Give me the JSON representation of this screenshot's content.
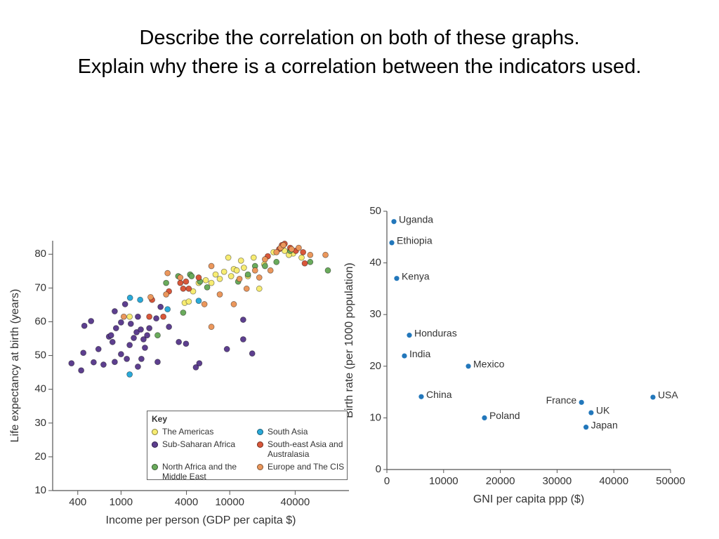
{
  "title": [
    "Describe the correlation on both of these graphs.",
    "Explain why there is a correlation between the indicators used."
  ],
  "chart_data": [
    {
      "type": "scatter",
      "xscale": "log",
      "x_label": "Income per person (GDP per capita $)",
      "y_label": "Life expectancy at birth (years)",
      "xlim": [
        235,
        125000
      ],
      "ylim": [
        10,
        84
      ],
      "xticks": [
        400,
        1000,
        4000,
        10000,
        40000
      ],
      "yticks": [
        10,
        20,
        30,
        40,
        50,
        60,
        70,
        80
      ],
      "legend_title": "Key",
      "series": [
        {
          "name": "The Americas",
          "color": "#f7ec72",
          "x": [
            1200,
            3850,
            4200,
            4600,
            5180,
            6020,
            6780,
            7410,
            8100,
            8870,
            9700,
            10300,
            10900,
            11600,
            12700,
            13500,
            14700,
            16600,
            18700,
            20800,
            25300,
            32000,
            38300,
            45800,
            35000
          ],
          "y": [
            61.5,
            65.6,
            66,
            69,
            71.5,
            72.3,
            71.5,
            74,
            72.7,
            74.8,
            79,
            73.5,
            75.6,
            75.2,
            78.1,
            76,
            73.5,
            79,
            69.8,
            77,
            80.6,
            81,
            80.2,
            79,
            79.8
          ]
        },
        {
          "name": "Sub-Saharan Africa",
          "color": "#5d3f8f",
          "x": [
            350,
            430,
            450,
            460,
            530,
            560,
            620,
            690,
            775,
            810,
            835,
            875,
            875,
            900,
            1000,
            1000,
            1130,
            1200,
            1230,
            1310,
            1390,
            1430,
            1520,
            1540,
            1610,
            1660,
            1740,
            1820,
            2110,
            2310,
            2170,
            2760,
            3400,
            3960,
            4880,
            5250,
            9420,
            13300,
            13300,
            16100,
            1090,
            1430
          ],
          "y": [
            47.7,
            45.6,
            50.8,
            58.8,
            60.2,
            48,
            51.9,
            47.3,
            55.6,
            56,
            54,
            63.1,
            48.1,
            58.1,
            59.8,
            50.4,
            49,
            53.1,
            59.4,
            55.2,
            56.9,
            46.7,
            57.7,
            49,
            54.8,
            52.3,
            56,
            58.1,
            61,
            64.4,
            48.1,
            58.5,
            54,
            53.5,
            46.5,
            47.7,
            51.9,
            60.6,
            54.8,
            50.6,
            65.2,
            61.5
          ]
        },
        {
          "name": "North Africa and the Middle East",
          "color": "#6aab5c",
          "x": [
            2170,
            2600,
            3360,
            3730,
            4320,
            4460,
            5330,
            6200,
            11950,
            14700,
            17100,
            21100,
            26900,
            36000,
            55000,
            80000
          ],
          "y": [
            56,
            71.5,
            73.5,
            62.7,
            74,
            73.5,
            71.9,
            70.2,
            71.9,
            74,
            76.5,
            76.5,
            77.7,
            81,
            77.7,
            75.2
          ]
        },
        {
          "name": "South Asia",
          "color": "#2aaad9",
          "x": [
            1210,
            1500,
            1200,
            2680,
            5180
          ],
          "y": [
            67.1,
            66.5,
            44.4,
            63.7,
            66.2
          ]
        },
        {
          "name": "South-east Asia and Australasia",
          "color": "#d9573a",
          "x": [
            1820,
            1930,
            2450,
            2760,
            3510,
            3730,
            3960,
            4200,
            5180,
            22400,
            28500,
            30200,
            36000,
            40600,
            47300,
            49000,
            32000
          ],
          "y": [
            61.5,
            66.5,
            61.5,
            69,
            71.5,
            69.8,
            71.9,
            69.8,
            73.1,
            79.4,
            81.5,
            82.7,
            81.9,
            81,
            80.6,
            77.3,
            83.1
          ]
        },
        {
          "name": "Europe and The CIS",
          "color": "#eb975c",
          "x": [
            1060,
            1870,
            2600,
            2680,
            3510,
            5850,
            6780,
            6780,
            8100,
            10900,
            12300,
            14300,
            17100,
            18700,
            21100,
            23700,
            26900,
            29400,
            31200,
            37100,
            43100,
            55000,
            76000
          ],
          "y": [
            61.5,
            67.3,
            68.1,
            74.4,
            73.1,
            65.2,
            58.5,
            76.5,
            68.1,
            65.2,
            72.7,
            69.8,
            75.2,
            73.1,
            78.5,
            75.2,
            80.6,
            81.9,
            82.7,
            81.5,
            81.9,
            79.8,
            79.8
          ]
        }
      ]
    },
    {
      "type": "scatter",
      "x_label": "GNI per capita ppp ($)",
      "y_label": "Birth rate (per 1000 population)",
      "xlim": [
        0,
        50000
      ],
      "ylim": [
        0,
        50
      ],
      "xticks": [
        0,
        10000,
        20000,
        30000,
        40000,
        50000
      ],
      "yticks": [
        0,
        10,
        20,
        30,
        40,
        50
      ],
      "color": "#2277bb",
      "labels": [
        "Uganda",
        "Ethiopia",
        "Kenya",
        "Honduras",
        "India",
        "Mexico",
        "China",
        "Poland",
        "France",
        "UK",
        "Japan",
        "USA"
      ],
      "x": [
        1240,
        870,
        1730,
        3960,
        3090,
        14360,
        6060,
        17200,
        34300,
        36000,
        35100,
        46900
      ],
      "y": [
        48,
        43.9,
        37,
        26,
        22,
        20,
        14.1,
        10,
        13,
        11,
        8.2,
        14
      ]
    }
  ]
}
